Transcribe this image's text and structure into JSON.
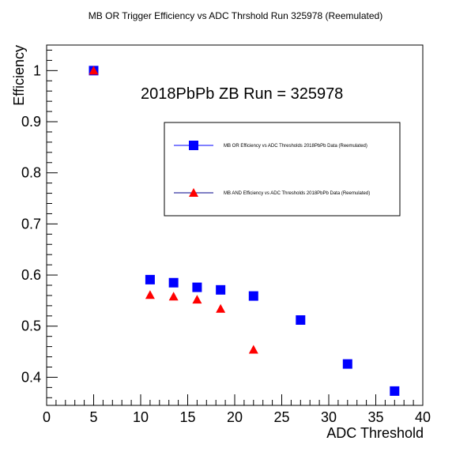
{
  "chart_data": {
    "type": "scatter",
    "title": "MB OR Trigger Efficiency vs ADC Thrshold Run 325978 (Reemulated)",
    "xlabel": "ADC Threshold",
    "ylabel": "Efficiency",
    "xlim": [
      0,
      40
    ],
    "ylim": [
      0.345,
      1.05
    ],
    "x_ticks": [
      0,
      5,
      10,
      15,
      20,
      25,
      30,
      35,
      40
    ],
    "y_ticks": [
      0.4,
      0.5,
      0.6,
      0.7,
      0.8,
      0.9,
      1
    ],
    "annotation": "2018PbPb ZB Run = 325978",
    "legend_position": "top-right",
    "grid": false,
    "series": [
      {
        "name": "MB OR Efficiency vs ADC Thresholds 2018PbPb Data (Reemulated)",
        "marker": "square",
        "color": "#0000ff",
        "x": [
          5,
          11,
          13.5,
          16,
          18.5,
          22,
          27,
          32,
          37
        ],
        "y": [
          1.0,
          0.591,
          0.585,
          0.576,
          0.571,
          0.559,
          0.512,
          0.426,
          0.373
        ]
      },
      {
        "name": "MB AND Efficiency vs ADC Thresholds 2018PbPb Data (Reemulated)",
        "marker": "triangle",
        "color": "#ff0000",
        "x": [
          5,
          11,
          13.5,
          16,
          18.5,
          22
        ],
        "y": [
          1.0,
          0.561,
          0.558,
          0.552,
          0.534,
          0.454
        ]
      }
    ]
  }
}
